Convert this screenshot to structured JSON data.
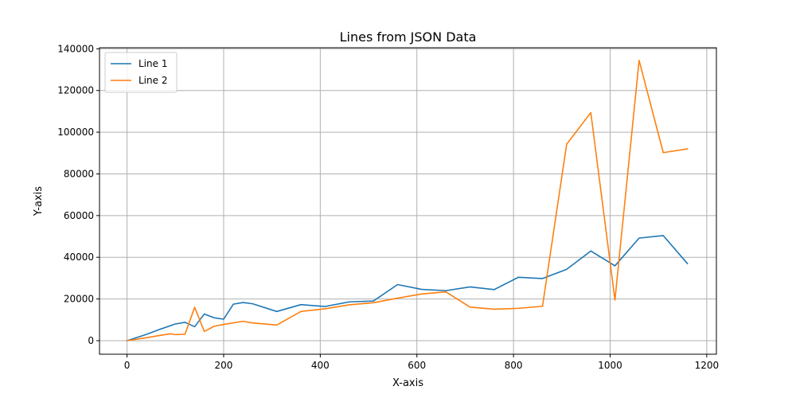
{
  "chart_data": {
    "type": "line",
    "title": "Lines from JSON Data",
    "xlabel": "X-axis",
    "ylabel": "Y-axis",
    "xlim": [
      -57,
      1220
    ],
    "ylim": [
      -6500,
      140500
    ],
    "xticks": [
      0,
      200,
      400,
      600,
      800,
      1000,
      1200
    ],
    "yticks": [
      0,
      20000,
      40000,
      60000,
      80000,
      100000,
      120000,
      140000
    ],
    "grid": true,
    "legend_position": "upper-left",
    "series": [
      {
        "name": "Line 1",
        "color": "#1f77b4",
        "points": [
          [
            0,
            0
          ],
          [
            40,
            3000
          ],
          [
            70,
            5600
          ],
          [
            100,
            8000
          ],
          [
            120,
            8800
          ],
          [
            140,
            6700
          ],
          [
            160,
            12800
          ],
          [
            180,
            11000
          ],
          [
            200,
            10300
          ],
          [
            220,
            17500
          ],
          [
            240,
            18300
          ],
          [
            260,
            17700
          ],
          [
            310,
            14000
          ],
          [
            360,
            17300
          ],
          [
            410,
            16400
          ],
          [
            460,
            18600
          ],
          [
            510,
            19000
          ],
          [
            560,
            26900
          ],
          [
            610,
            24600
          ],
          [
            660,
            24000
          ],
          [
            710,
            25800
          ],
          [
            760,
            24500
          ],
          [
            810,
            30400
          ],
          [
            860,
            29800
          ],
          [
            910,
            34200
          ],
          [
            960,
            43000
          ],
          [
            1010,
            35900
          ],
          [
            1060,
            49200
          ],
          [
            1110,
            50400
          ],
          [
            1160,
            37000
          ]
        ]
      },
      {
        "name": "Line 2",
        "color": "#ff7f0e",
        "points": [
          [
            0,
            0
          ],
          [
            40,
            1400
          ],
          [
            70,
            2600
          ],
          [
            90,
            3300
          ],
          [
            100,
            2900
          ],
          [
            120,
            3100
          ],
          [
            140,
            16000
          ],
          [
            160,
            4400
          ],
          [
            180,
            6900
          ],
          [
            200,
            7800
          ],
          [
            240,
            9300
          ],
          [
            260,
            8500
          ],
          [
            310,
            7500
          ],
          [
            360,
            14000
          ],
          [
            410,
            15300
          ],
          [
            460,
            17200
          ],
          [
            510,
            18200
          ],
          [
            560,
            20400
          ],
          [
            610,
            22400
          ],
          [
            660,
            23400
          ],
          [
            710,
            16100
          ],
          [
            760,
            15100
          ],
          [
            810,
            15500
          ],
          [
            860,
            16500
          ],
          [
            910,
            94200
          ],
          [
            960,
            109400
          ],
          [
            1010,
            19500
          ],
          [
            1060,
            134400
          ],
          [
            1110,
            90200
          ],
          [
            1160,
            92000
          ]
        ]
      }
    ]
  }
}
